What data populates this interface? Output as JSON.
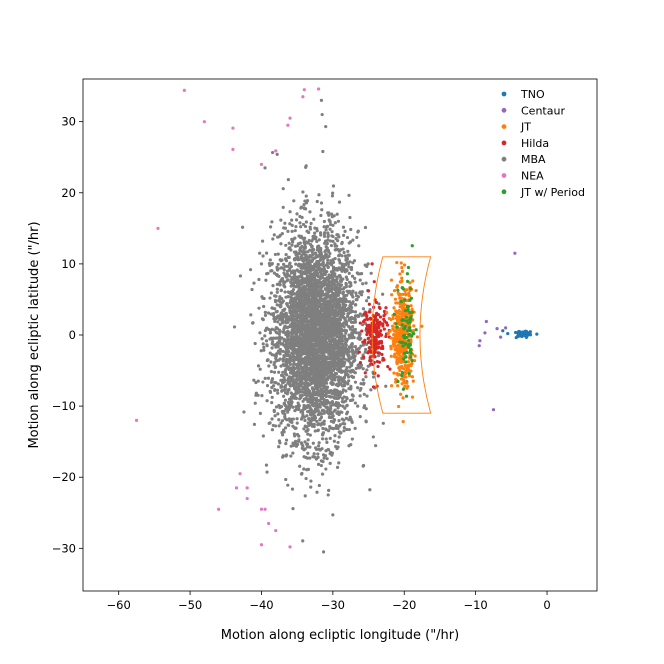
{
  "chart_data": {
    "type": "scatter",
    "title": "",
    "xlabel": "Motion along ecliptic longitude (\"/hr)",
    "ylabel": "Motion along ecliptic latitude (\"/hr)",
    "xlim": [
      -65,
      7
    ],
    "ylim": [
      -36,
      36
    ],
    "x_ticks": [
      -60,
      -50,
      -40,
      -30,
      -20,
      -10,
      0
    ],
    "y_ticks": [
      -30,
      -20,
      -10,
      0,
      10,
      20,
      30
    ],
    "x_tick_labels": [
      "−60",
      "−50",
      "−40",
      "−30",
      "−20",
      "−10",
      "0"
    ],
    "y_tick_labels": [
      "−30",
      "−20",
      "−10",
      "0",
      "10",
      "20",
      "30"
    ],
    "grid": false,
    "legend_position": "top-right",
    "jt_region": {
      "color": "#ff7f0e",
      "x_left": -24.5,
      "x_right": -17.8,
      "curve_x_at_edge": -23.0,
      "y_min": -11,
      "y_max": 11
    },
    "series": [
      {
        "name": "TNO",
        "color": "#1f77b4",
        "count": 60,
        "points": [
          [
            -6.2,
            0.6
          ],
          [
            -5.5,
            0.2
          ],
          [
            -4.0,
            0.4
          ],
          [
            -3.0,
            0.1
          ],
          [
            -3.5,
            -0.2
          ],
          [
            -2.5,
            0.3
          ]
        ],
        "cluster": {
          "cx": -3.4,
          "cy": 0.1,
          "sx": 0.55,
          "sy": 0.25
        }
      },
      {
        "name": "Centaur",
        "color": "#9467bd",
        "count": 9,
        "points": [
          [
            -4.5,
            11.5
          ],
          [
            -8.5,
            1.9
          ],
          [
            -8.7,
            0.3
          ],
          [
            -9.4,
            -0.8
          ],
          [
            -9.5,
            -1.5
          ],
          [
            -7.5,
            -10.5
          ],
          [
            -7.0,
            0.9
          ],
          [
            -5.8,
            1.0
          ],
          [
            -6.5,
            -0.3
          ]
        ]
      },
      {
        "name": "JT",
        "color": "#ff7f0e",
        "count": 420,
        "cluster": {
          "cx": -20.2,
          "cy": 0.0,
          "sx": 0.75,
          "sy": 3.6
        }
      },
      {
        "name": "Hilda",
        "color": "#d62728",
        "count": 190,
        "points": [
          [
            -24.5,
            10.0
          ],
          [
            -25.0,
            6.2
          ],
          [
            -23.8,
            -7.2
          ],
          [
            -24.2,
            7.5
          ],
          [
            -25.8,
            -1.0
          ],
          [
            -22.0,
            -4.8
          ]
        ],
        "cluster": {
          "cx": -24.0,
          "cy": 0.0,
          "sx": 0.9,
          "sy": 2.2
        }
      },
      {
        "name": "MBA",
        "color": "#7f7f7f",
        "count": 4200,
        "points": [
          [
            -31.6,
            33.0
          ],
          [
            -31.5,
            31.0
          ],
          [
            -31.0,
            29.3
          ],
          [
            -31.3,
            -30.5
          ],
          [
            -37.8,
            25.4
          ],
          [
            -39.5,
            23.5
          ],
          [
            -30.0,
            -25.3
          ],
          [
            -40.0,
            10.0
          ]
        ],
        "cluster": {
          "cx": -32.5,
          "cy": 0.0,
          "sx": 3.0,
          "sy": 7.2
        }
      },
      {
        "name": "NEA",
        "color": "#e377c2",
        "count": 24,
        "points": [
          [
            -50.8,
            34.4
          ],
          [
            -34.0,
            34.5
          ],
          [
            -32.0,
            34.6
          ],
          [
            -34.2,
            33.5
          ],
          [
            -48.0,
            30.0
          ],
          [
            -44.0,
            29.1
          ],
          [
            -36.0,
            30.5
          ],
          [
            -36.3,
            29.5
          ],
          [
            -44.0,
            26.1
          ],
          [
            -38.0,
            25.9
          ],
          [
            -40.0,
            24.0
          ],
          [
            -54.5,
            15.0
          ],
          [
            -57.5,
            -12.0
          ],
          [
            -43.0,
            -19.5
          ],
          [
            -43.5,
            -21.5
          ],
          [
            -42.0,
            -21.5
          ],
          [
            -42.0,
            -23.0
          ],
          [
            -46.0,
            -24.5
          ],
          [
            -40.0,
            -24.5
          ],
          [
            -39.5,
            -24.5
          ],
          [
            -39.0,
            -26.5
          ],
          [
            -38.0,
            -27.5
          ],
          [
            -40.0,
            -29.5
          ],
          [
            -36.0,
            -29.8
          ]
        ]
      },
      {
        "name": "JT w/ Period",
        "color": "#2ca02c",
        "count": 80,
        "cluster": {
          "cx": -19.6,
          "cy": 0.0,
          "sx": 0.6,
          "sy": 3.8
        }
      }
    ]
  }
}
